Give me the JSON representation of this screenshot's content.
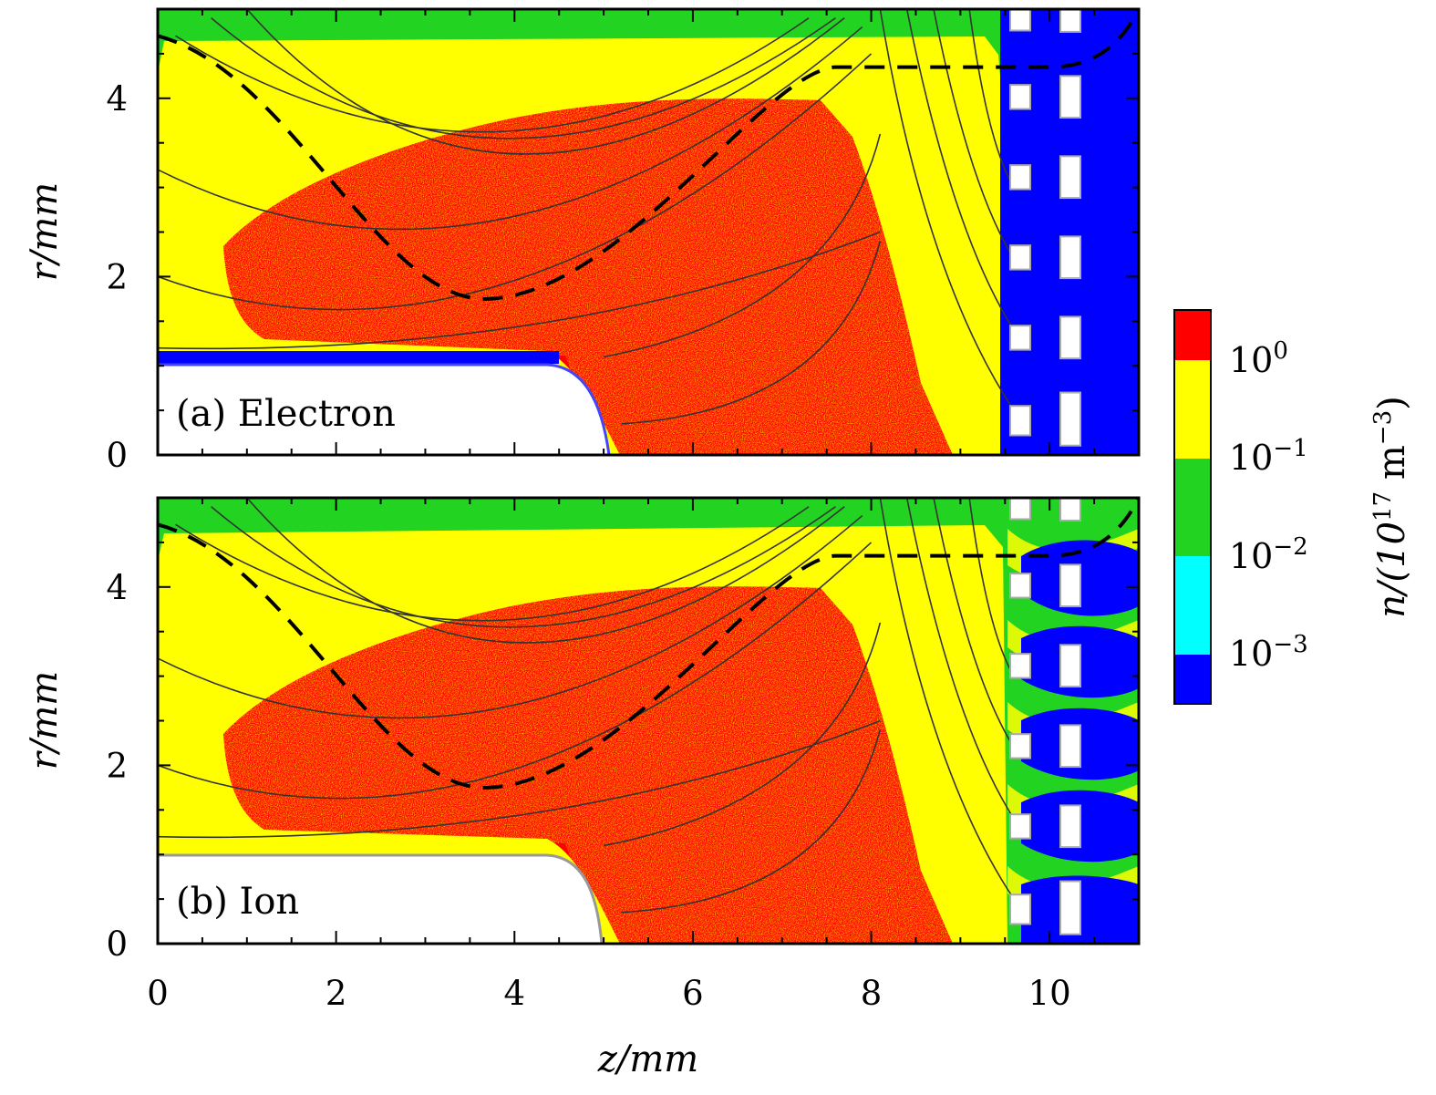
{
  "colors": {
    "red": "#ff0000",
    "yellow": "#ffff00",
    "green": "#22d322",
    "cyan": "#00ffff",
    "blue": "#0000ff",
    "white": "#ffffff",
    "grey": "#aaaaaa"
  },
  "chart_data": {
    "type": "heatmap",
    "panels": [
      {
        "label": "(a) Electron",
        "species": "electron"
      },
      {
        "label": "(b) Ion",
        "species": "ion"
      }
    ],
    "xlabel": "z/mm",
    "ylabel": "r/mm",
    "xlim": [
      0,
      11
    ],
    "ylim": [
      0,
      5
    ],
    "x_ticks": [
      0,
      2,
      4,
      6,
      8,
      10
    ],
    "x_tick_labels": [
      "0",
      "2",
      "4",
      "6",
      "8",
      "10"
    ],
    "y_ticks": [
      0,
      2,
      4
    ],
    "y_tick_labels": [
      "0",
      "2",
      "4"
    ],
    "colorbar": {
      "label": "n/(10^17 m^-3)",
      "label_parts": {
        "prefix": "n/(10",
        "exp": "17",
        "middle": " m",
        "exp2": "−3",
        "suffix": ")"
      },
      "levels": [
        {
          "color": "red",
          "range": "> 10^0"
        },
        {
          "color": "yellow",
          "range": "10^-1 – 10^0"
        },
        {
          "color": "green",
          "range": "10^-2 – 10^-1"
        },
        {
          "color": "cyan",
          "range": "10^-3 – 10^-2"
        },
        {
          "color": "blue",
          "range": "< 10^-3"
        }
      ],
      "tick_labels": [
        {
          "base": "10",
          "exp": "0"
        },
        {
          "base": "10",
          "exp": "−1"
        },
        {
          "base": "10",
          "exp": "−2"
        },
        {
          "base": "10",
          "exp": "−3"
        }
      ]
    },
    "grid": false,
    "electrode_region": {
      "z_start": 9.5,
      "z_end": 11
    }
  }
}
